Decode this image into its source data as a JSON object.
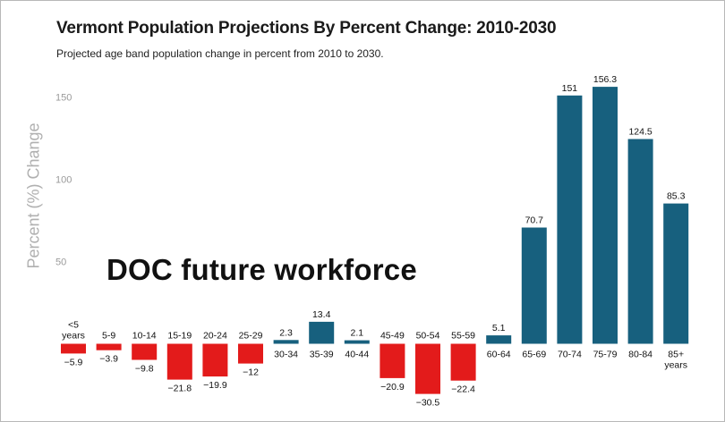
{
  "chart_data": {
    "type": "bar",
    "title": "Vermont Population Projections By Percent Change: 2010-2030",
    "subtitle": "Projected age band population change in percent from 2010 to 2030.",
    "ylabel": "Percent (%) Change",
    "xlabel": "",
    "annotation": "DOC future workforce",
    "categories": [
      "<5 years",
      "5-9",
      "10-14",
      "15-19",
      "20-24",
      "25-29",
      "30-34",
      "35-39",
      "40-44",
      "45-49",
      "50-54",
      "55-59",
      "60-64",
      "65-69",
      "70-74",
      "75-79",
      "80-84",
      "85+ years"
    ],
    "values": [
      -5.9,
      -3.9,
      -9.8,
      -21.8,
      -19.9,
      -12,
      2.3,
      13.4,
      2.1,
      -20.9,
      -30.5,
      -22.4,
      5.1,
      70.7,
      151,
      156.3,
      124.5,
      85.3
    ],
    "value_labels": [
      "−5.9",
      "−3.9",
      "−9.8",
      "−21.8",
      "−19.9",
      "−12",
      "2.3",
      "13.4",
      "2.1",
      "−20.9",
      "−30.5",
      "−22.4",
      "5.1",
      "70.7",
      "151",
      "156.3",
      "124.5",
      "85.3"
    ],
    "yticks": [
      50,
      100,
      150
    ],
    "ylim": [
      -35,
      160
    ],
    "grid": false,
    "colors": {
      "positive": "#17607e",
      "negative": "#e31b1b"
    }
  }
}
